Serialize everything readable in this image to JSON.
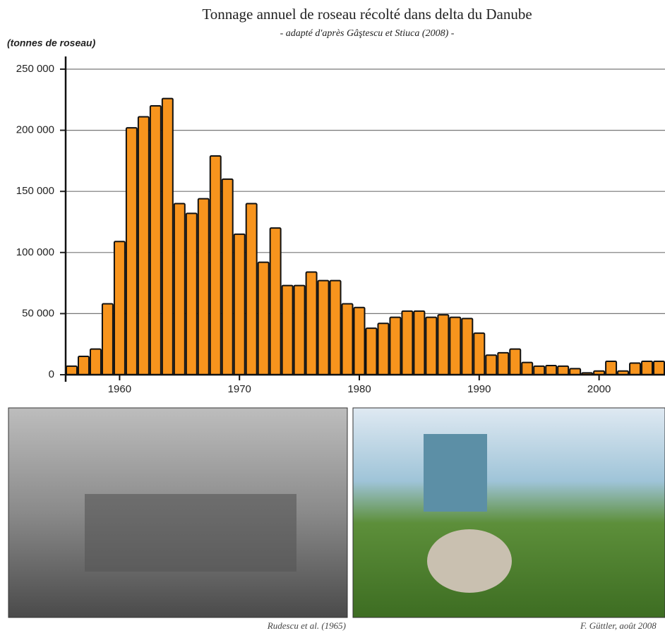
{
  "chart_data": {
    "type": "bar",
    "title": "Tonnage annuel de roseau récolté dans delta du Danube",
    "subtitle": "- adapté d'après Gâştescu et Stiuca (2008) -",
    "y_label": "(tonnes de roseau)",
    "x": [
      1956,
      1957,
      1958,
      1959,
      1960,
      1961,
      1962,
      1963,
      1964,
      1965,
      1966,
      1967,
      1968,
      1969,
      1970,
      1971,
      1972,
      1973,
      1974,
      1975,
      1976,
      1977,
      1978,
      1979,
      1980,
      1981,
      1982,
      1983,
      1984,
      1985,
      1986,
      1987,
      1988,
      1989,
      1990,
      1991,
      1992,
      1993,
      1994,
      1995,
      1996,
      1997,
      1998,
      1999,
      2000,
      2001,
      2002,
      2003,
      2004,
      2005
    ],
    "values": [
      7000,
      15000,
      21000,
      58000,
      109000,
      202000,
      211000,
      220000,
      226000,
      140000,
      132000,
      144000,
      179000,
      160000,
      115000,
      140000,
      92000,
      120000,
      73000,
      73000,
      84000,
      77000,
      77000,
      58000,
      55000,
      38000,
      42000,
      47000,
      52000,
      52000,
      47000,
      49000,
      47000,
      46000,
      34000,
      16000,
      18000,
      21000,
      10000,
      7000,
      7500,
      7000,
      5000,
      1500,
      3000,
      11000,
      3000,
      9500,
      11000,
      11000
    ],
    "color": "#f7941d",
    "xlim": [
      1955.5,
      2005.5
    ],
    "xticks": [
      1960,
      1970,
      1980,
      1990,
      2000
    ],
    "ylim": [
      0,
      250000
    ],
    "yticks": [
      0,
      {
        "value": 50000,
        "label": "50 000"
      },
      {
        "value": 100000,
        "label": "100 000"
      },
      {
        "value": 150000,
        "label": "150 000"
      },
      {
        "value": 200000,
        "label": "200 000"
      },
      {
        "value": 250000,
        "label": "250 000"
      }
    ],
    "grid": true
  },
  "photos": [
    {
      "caption": "Rudescu et al. (1965)"
    },
    {
      "caption": "F. Güttler, août 2008"
    }
  ]
}
